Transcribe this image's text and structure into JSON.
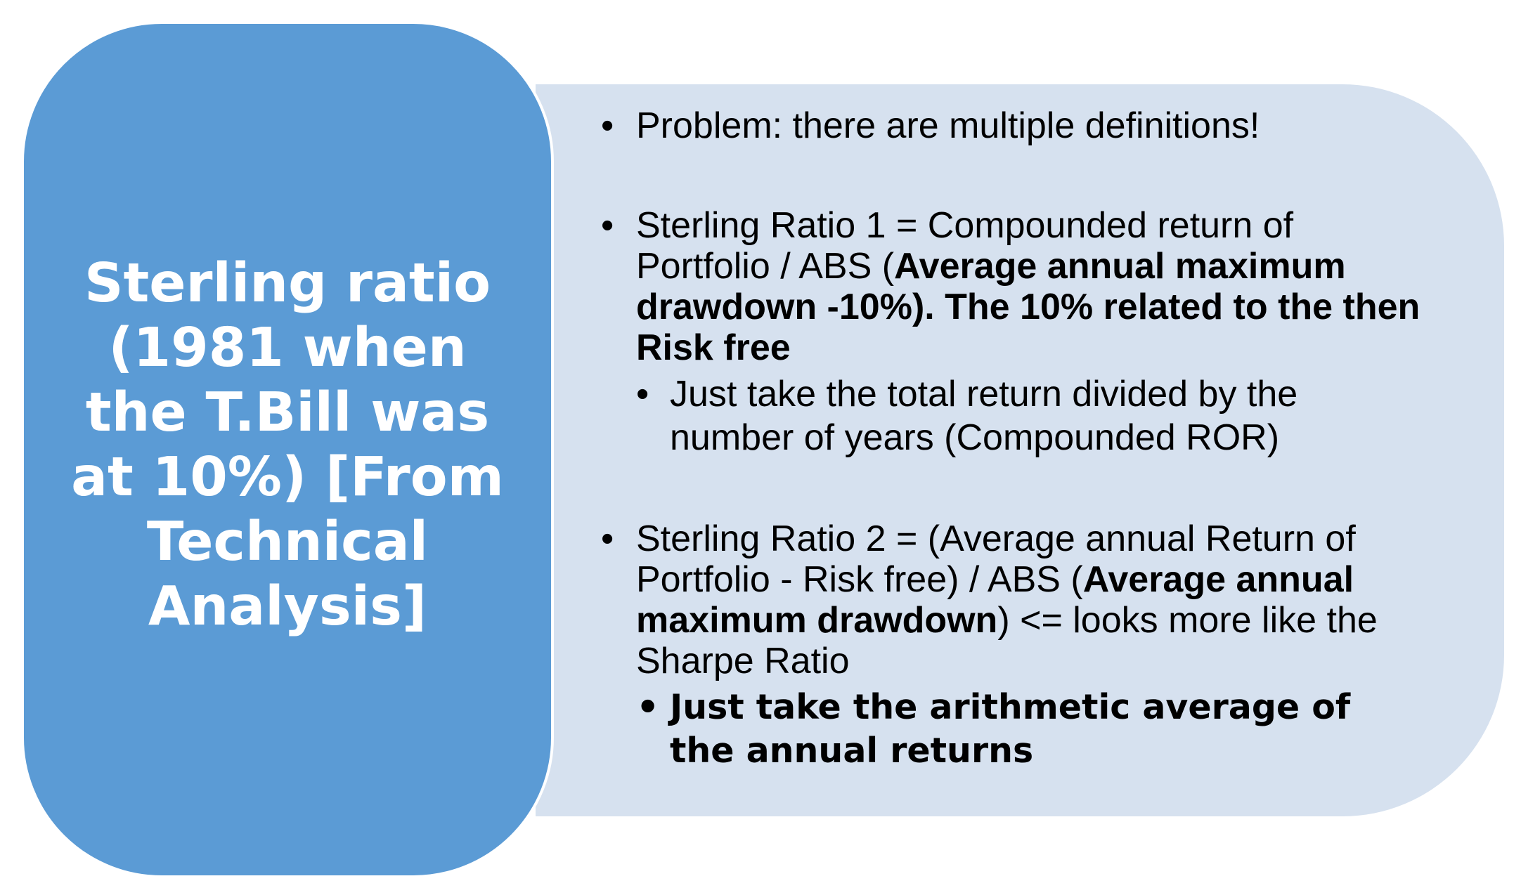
{
  "title": "Sterling ratio (1981 when the T.Bill was at 10%) [From Technical Analysis]",
  "colors": {
    "title_box": "#5b9bd5",
    "content_box": "#d6e1ef",
    "title_text": "#ffffff",
    "body_text": "#000000"
  },
  "bullet_glyph": "•",
  "bullets": [
    {
      "text": "Problem: there are multiple definitions!"
    },
    {
      "text_before": "Sterling Ratio 1 = Compounded return of Portfolio  / ABS (",
      "text_bold": "Average annual maximum drawdown -10%). The 10% related to the then Risk free",
      "sub": "Just take the total return divided by the number of years (Compounded ROR)"
    },
    {
      "text_before": "Sterling Ratio 2 = (Average annual Return of Portfolio - Risk free) / ABS (",
      "text_bold": "Average annual maximum drawdown",
      "text_after": ") <= looks more like the Sharpe Ratio",
      "sub": "Just take the arithmetic average of the annual returns"
    }
  ]
}
